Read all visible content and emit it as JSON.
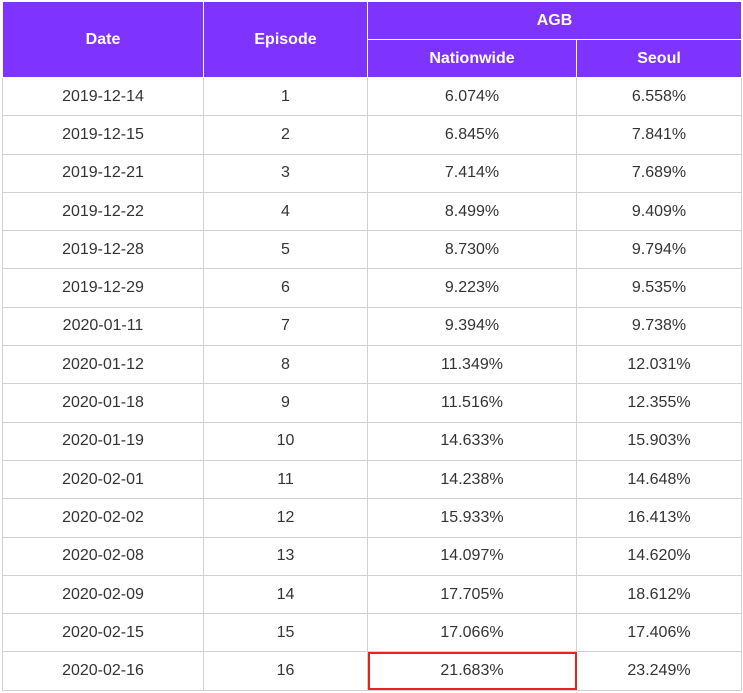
{
  "table": {
    "headers": {
      "date": "Date",
      "episode": "Episode",
      "agb": "AGB",
      "nationwide": "Nationwide",
      "seoul": "Seoul"
    },
    "rows": [
      {
        "date": "2019-12-14",
        "episode": "1",
        "nationwide": "6.074%",
        "seoul": "6.558%"
      },
      {
        "date": "2019-12-15",
        "episode": "2",
        "nationwide": "6.845%",
        "seoul": "7.841%"
      },
      {
        "date": "2019-12-21",
        "episode": "3",
        "nationwide": "7.414%",
        "seoul": "7.689%"
      },
      {
        "date": "2019-12-22",
        "episode": "4",
        "nationwide": "8.499%",
        "seoul": "9.409%"
      },
      {
        "date": "2019-12-28",
        "episode": "5",
        "nationwide": "8.730%",
        "seoul": "9.794%"
      },
      {
        "date": "2019-12-29",
        "episode": "6",
        "nationwide": "9.223%",
        "seoul": "9.535%"
      },
      {
        "date": "2020-01-11",
        "episode": "7",
        "nationwide": "9.394%",
        "seoul": "9.738%"
      },
      {
        "date": "2020-01-12",
        "episode": "8",
        "nationwide": "11.349%",
        "seoul": "12.031%"
      },
      {
        "date": "2020-01-18",
        "episode": "9",
        "nationwide": "11.516%",
        "seoul": "12.355%"
      },
      {
        "date": "2020-01-19",
        "episode": "10",
        "nationwide": "14.633%",
        "seoul": "15.903%"
      },
      {
        "date": "2020-02-01",
        "episode": "11",
        "nationwide": "14.238%",
        "seoul": "14.648%"
      },
      {
        "date": "2020-02-02",
        "episode": "12",
        "nationwide": "15.933%",
        "seoul": "16.413%"
      },
      {
        "date": "2020-02-08",
        "episode": "13",
        "nationwide": "14.097%",
        "seoul": "14.620%"
      },
      {
        "date": "2020-02-09",
        "episode": "14",
        "nationwide": "17.705%",
        "seoul": "18.612%"
      },
      {
        "date": "2020-02-15",
        "episode": "15",
        "nationwide": "17.066%",
        "seoul": "17.406%"
      },
      {
        "date": "2020-02-16",
        "episode": "16",
        "nationwide": "21.683%",
        "seoul": "23.249%"
      }
    ],
    "highlight": {
      "row": 16,
      "column": "nationwide",
      "color": "#e8231e"
    },
    "colors": {
      "header_bg": "#7f33ff",
      "header_text": "#ffffff",
      "cell_text": "#333333",
      "border": "#d0d0d0"
    }
  }
}
